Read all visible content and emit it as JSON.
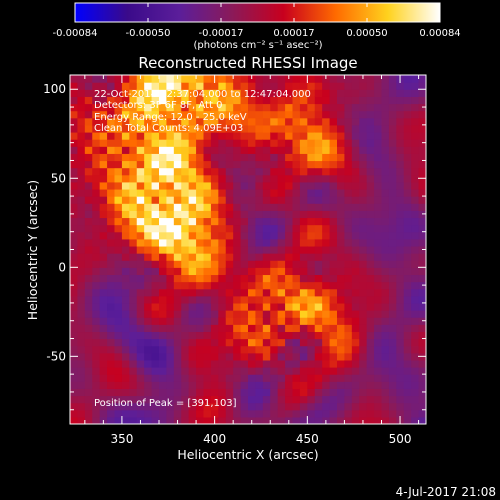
{
  "chart_data": {
    "type": "heatmap",
    "title": "Reconstructed RHESSI Image",
    "xlabel": "Heliocentric X (arcsec)",
    "ylabel": "Heliocentric Y (arcsec)",
    "xlim": [
      322,
      514
    ],
    "ylim": [
      -88,
      108
    ],
    "x_ticks": [
      350,
      400,
      450,
      500
    ],
    "y_ticks": [
      -50,
      0,
      50,
      100
    ],
    "colorbar": {
      "range": [
        -0.00084,
        0.00084
      ],
      "ticks": [
        "-0.00084",
        "-0.00050",
        "-0.00017",
        "0.00017",
        "0.00050",
        "0.00084"
      ],
      "label": "(photons cm⁻² s⁻¹ asec⁻²)",
      "colors": [
        "#0000ff",
        "#3a0a8a",
        "#5b1e9a",
        "#8a1a5a",
        "#c8001e",
        "#ff6a00",
        "#ffd21e",
        "#ffffff"
      ]
    },
    "annotations": [
      "22-Oct-2014 12:37:04.000 to 12:47:04.000",
      "Detectors: 3F 6F 8F, Att 0",
      "Energy Range: 12.0 - 25.0 keV",
      "Clean    Total Counts: 4.09E+03"
    ],
    "peak_text": "Position of Peak = [391,103]",
    "peak_position": [
      391,
      103
    ],
    "bright_sources": [
      {
        "x": 391,
        "y": 103,
        "level": 1.0
      },
      {
        "x": 368,
        "y": 45,
        "level": 0.85
      },
      {
        "x": 380,
        "y": 20,
        "level": 0.75
      },
      {
        "x": 435,
        "y": -28,
        "level": 0.9
      },
      {
        "x": 345,
        "y": 80,
        "level": 0.7
      },
      {
        "x": 440,
        "y": 75,
        "level": 0.55
      }
    ],
    "grid": false
  },
  "footer": {
    "date": "4-Jul-2017 21:08"
  }
}
